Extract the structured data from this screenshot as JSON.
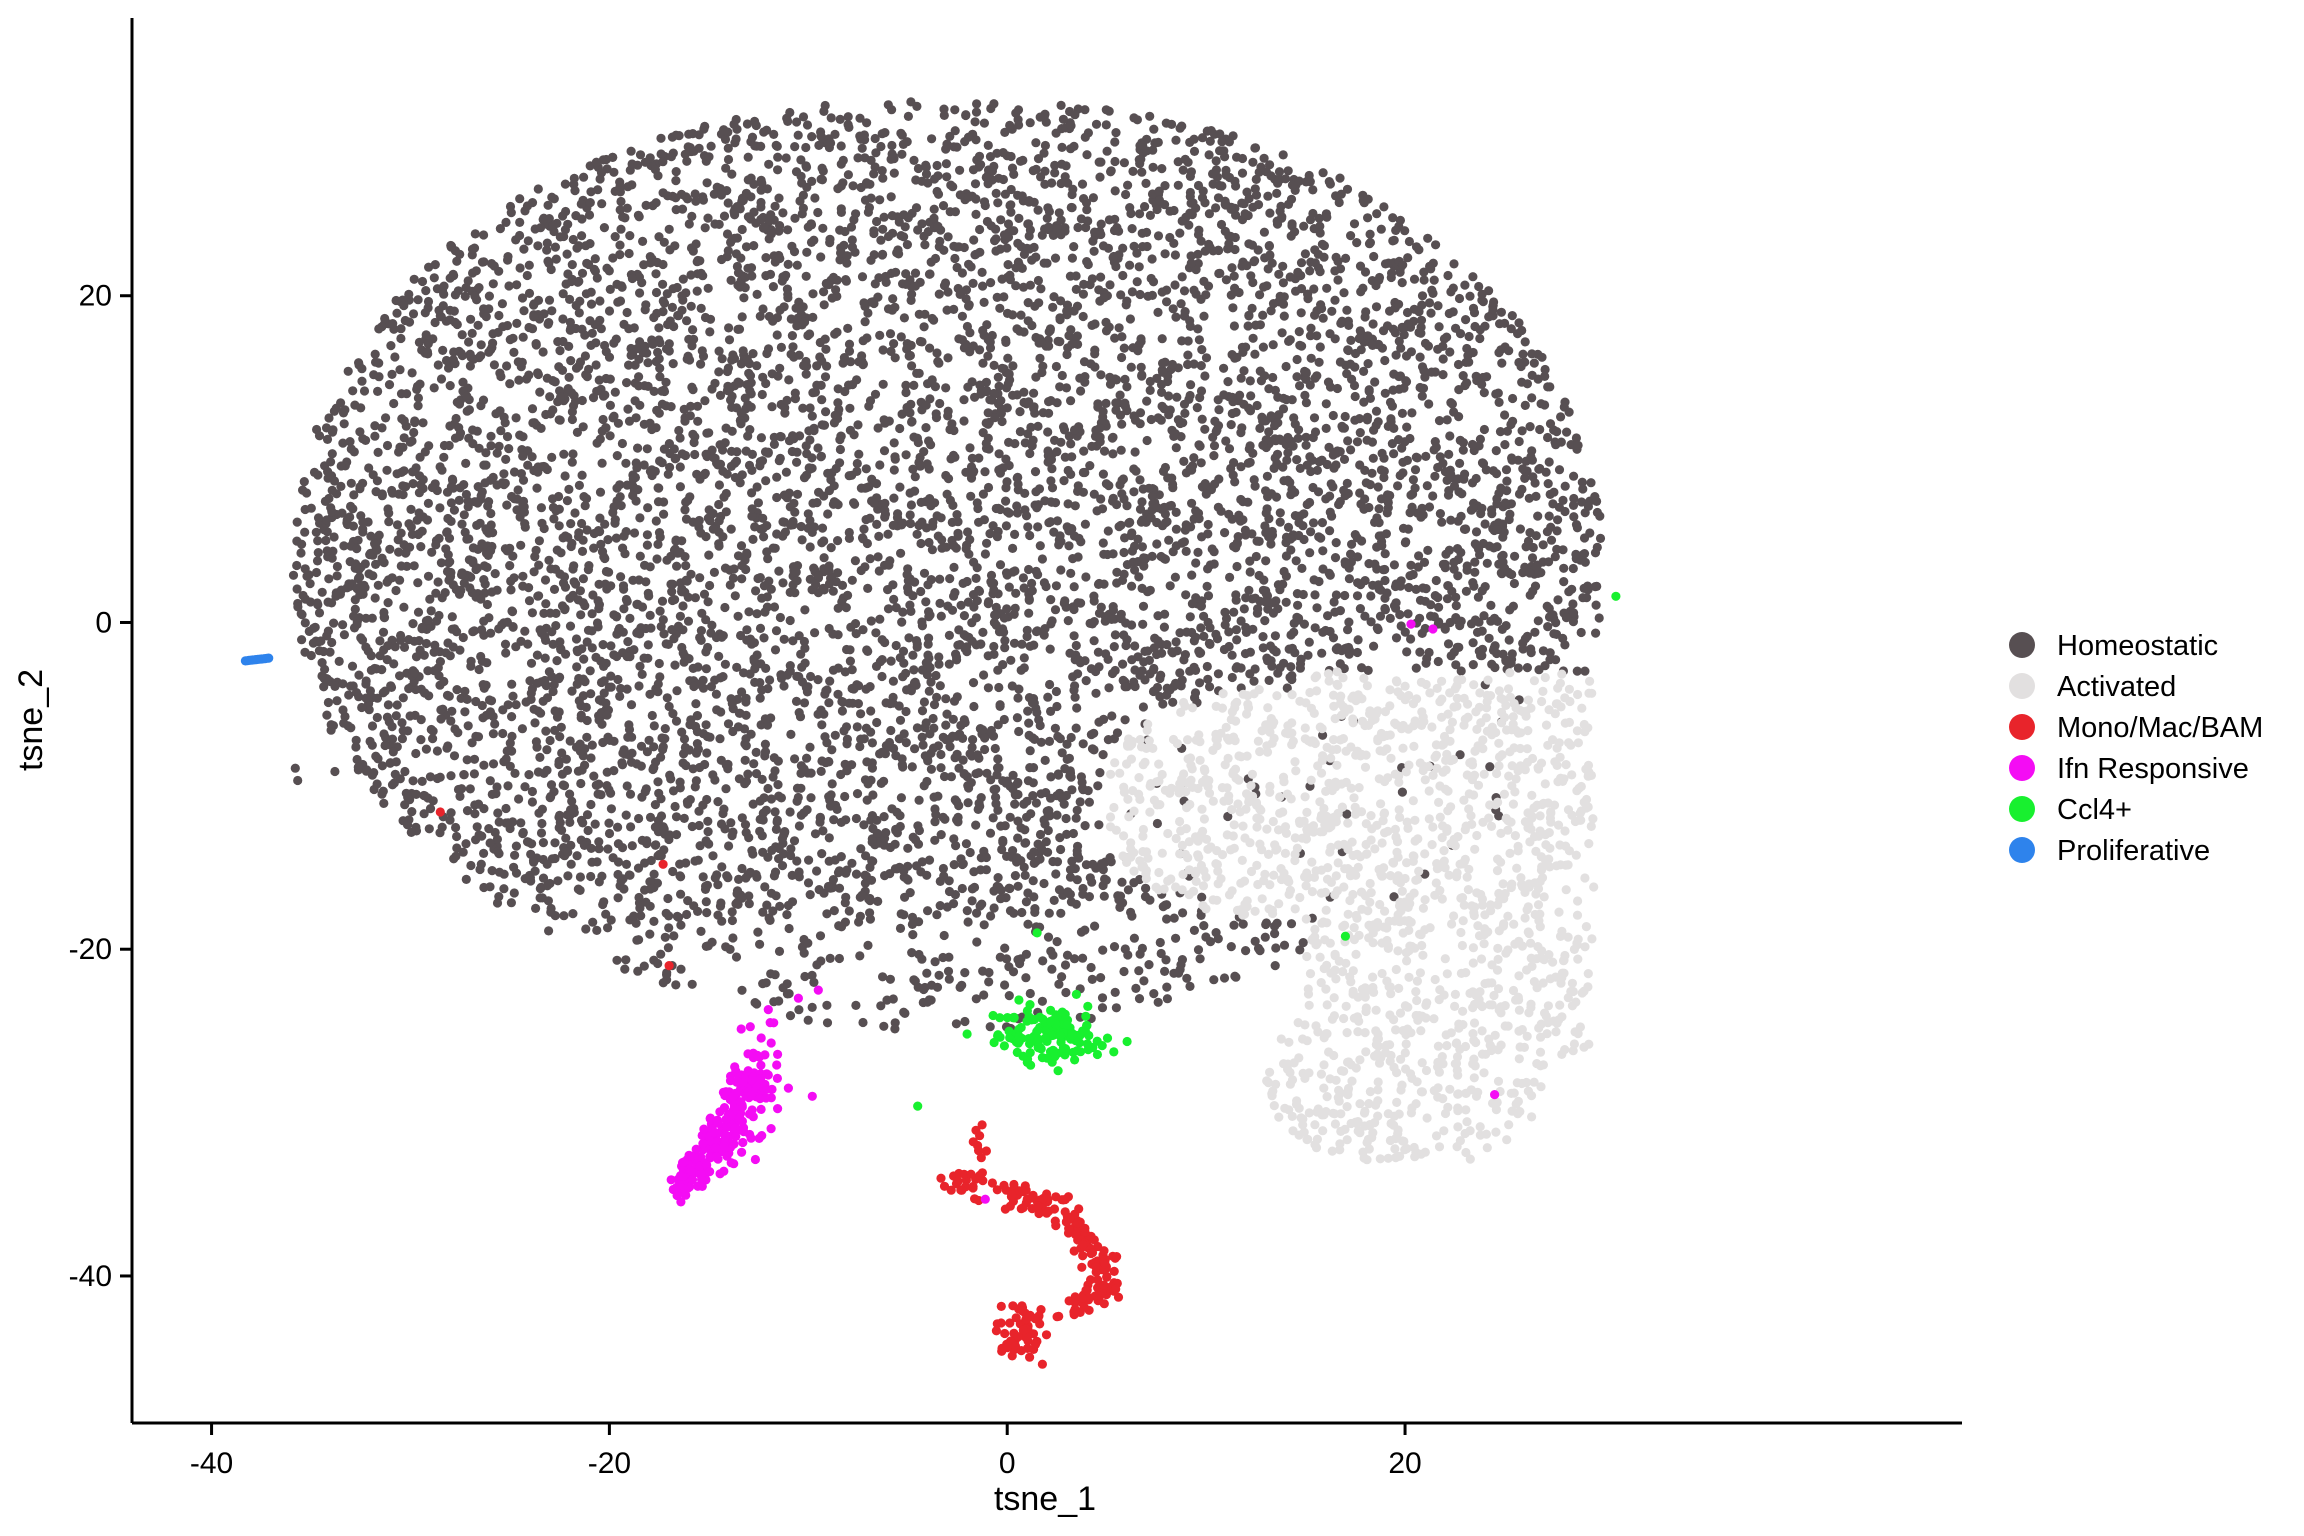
{
  "chart_data": {
    "type": "scatter",
    "title": "",
    "xlabel": "tsne_1",
    "ylabel": "tsne_2",
    "xlim": [
      -44,
      48
    ],
    "ylim": [
      -49,
      37
    ],
    "xticks": [
      -40,
      -20,
      0,
      20
    ],
    "yticks": [
      -40,
      -20,
      0,
      20
    ],
    "xtick_labels": [
      "-40",
      "-20",
      "0",
      "20"
    ],
    "ytick_labels": [
      "-40",
      "-20",
      "0",
      "20"
    ],
    "grid": false,
    "legend_position": "right",
    "series": [
      {
        "name": "Homeostatic",
        "color": "#574F52",
        "approx_centroid": [
          -3,
          8
        ],
        "approx_extent_x": [
          -37,
          31
        ],
        "approx_extent_y": [
          -29,
          32
        ],
        "approx_points": 7000
      },
      {
        "name": "Activated",
        "color": "#E2E0E0",
        "approx_centroid": [
          18,
          -13
        ],
        "approx_extent_x": [
          6,
          29
        ],
        "approx_extent_y": [
          -33,
          1
        ],
        "approx_points": 1500
      },
      {
        "name": "Mono/Mac/BAM",
        "color": "#E8242B",
        "approx_centroid": [
          2,
          -38
        ],
        "approx_extent_x": [
          -3,
          6
        ],
        "approx_extent_y": [
          -46,
          -31
        ],
        "approx_points": 220
      },
      {
        "name": "Ifn Responsive",
        "color": "#F40CF4",
        "approx_centroid": [
          -14,
          -29
        ],
        "approx_extent_x": [
          -17,
          -12
        ],
        "approx_extent_y": [
          -35,
          -25
        ],
        "approx_points": 280
      },
      {
        "name": "Ccl4+",
        "color": "#18F02F",
        "approx_centroid": [
          2,
          -25
        ],
        "approx_extent_x": [
          -2,
          6
        ],
        "approx_extent_y": [
          -28,
          -22
        ],
        "approx_points": 140
      },
      {
        "name": "Proliferative",
        "color": "#2E83EC",
        "approx_centroid": [
          -37.8,
          -2.3
        ],
        "approx_extent_x": [
          -38.4,
          -37.2
        ],
        "approx_extent_y": [
          -2.6,
          -2.0
        ],
        "approx_points": 14
      }
    ]
  }
}
